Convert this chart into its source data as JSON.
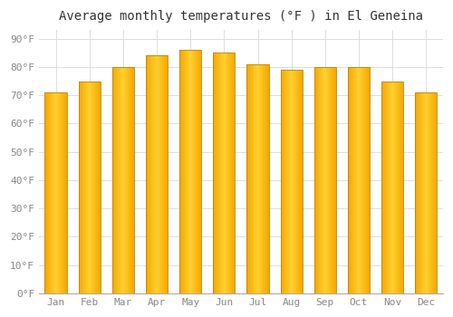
{
  "title": "Average monthly temperatures (°F ) in El Geneina",
  "months": [
    "Jan",
    "Feb",
    "Mar",
    "Apr",
    "May",
    "Jun",
    "Jul",
    "Aug",
    "Sep",
    "Oct",
    "Nov",
    "Dec"
  ],
  "values": [
    71,
    75,
    80,
    84,
    86,
    85,
    81,
    79,
    80,
    80,
    75,
    71
  ],
  "bar_color_left": "#F5A800",
  "bar_color_mid": "#FFD040",
  "bar_color_right": "#E89000",
  "bar_edge_color": "#B8860B",
  "background_color": "#FFFFFF",
  "plot_bg_color": "#FFFFFF",
  "grid_color": "#DDDDDD",
  "yticks": [
    0,
    10,
    20,
    30,
    40,
    50,
    60,
    70,
    80,
    90
  ],
  "ylim": [
    0,
    93
  ],
  "ylabel_suffix": "°F",
  "title_fontsize": 10,
  "tick_fontsize": 8,
  "font_family": "monospace",
  "tick_color": "#888888",
  "title_color": "#333333"
}
